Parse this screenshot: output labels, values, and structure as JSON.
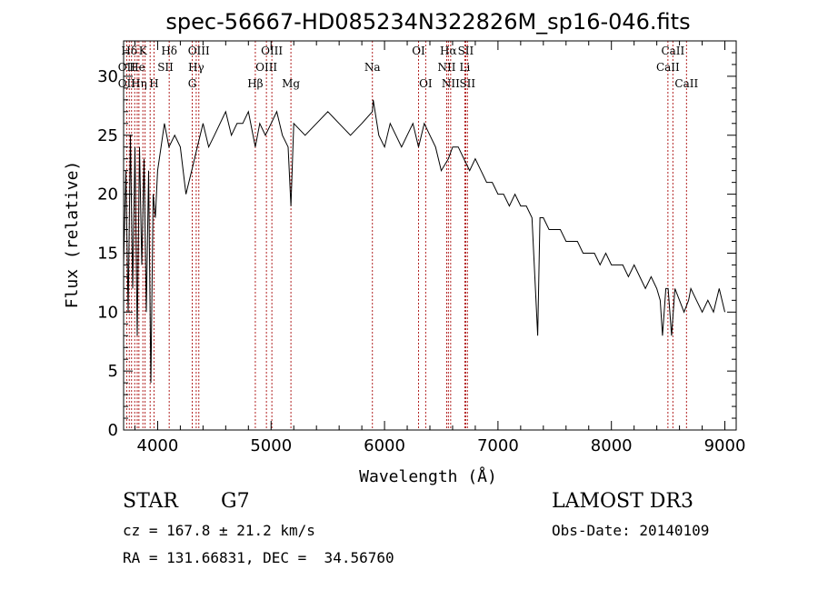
{
  "chart_data": {
    "type": "line",
    "title": "spec-56667-HD085234N322826M_sp16-046.fits",
    "xlabel": "Wavelength (Å)",
    "ylabel": "Flux (relative)",
    "xlim": [
      3700,
      9100
    ],
    "ylim": [
      0,
      33
    ],
    "xticks": [
      4000,
      5000,
      6000,
      7000,
      8000,
      9000
    ],
    "yticks": [
      0,
      5,
      10,
      15,
      20,
      25,
      30
    ],
    "line_color": "#000000",
    "marker_color": "#b22222",
    "grid": false,
    "series": [
      {
        "x": [
          3700,
          3720,
          3740,
          3760,
          3780,
          3800,
          3820,
          3840,
          3860,
          3880,
          3900,
          3920,
          3940,
          3960,
          3980,
          4000,
          4030,
          4060,
          4100,
          4150,
          4200,
          4250,
          4300,
          4350,
          4400,
          4450,
          4500,
          4550,
          4600,
          4650,
          4700,
          4750,
          4800,
          4861,
          4900,
          4950,
          5000,
          5050,
          5100,
          5150,
          5175,
          5200,
          5300,
          5400,
          5500,
          5600,
          5700,
          5800,
          5893,
          5900,
          5950,
          6000,
          6050,
          6100,
          6150,
          6200,
          6250,
          6300,
          6350,
          6400,
          6450,
          6500,
          6563,
          6600,
          6650,
          6700,
          6750,
          6800,
          6850,
          6900,
          6950,
          7000,
          7050,
          7100,
          7150,
          7200,
          7250,
          7300,
          7350,
          7370,
          7400,
          7450,
          7500,
          7550,
          7600,
          7650,
          7700,
          7750,
          7800,
          7850,
          7900,
          7950,
          8000,
          8050,
          8100,
          8150,
          8200,
          8250,
          8300,
          8350,
          8400,
          8430,
          8450,
          8480,
          8500,
          8530,
          8560,
          8600,
          8640,
          8680,
          8700,
          8750,
          8800,
          8850,
          8900,
          8950,
          9000
        ],
        "y": [
          14,
          22,
          10,
          25,
          12,
          24,
          8,
          24,
          14,
          23,
          10,
          22,
          4,
          20,
          18,
          22,
          24,
          26,
          24,
          25,
          24,
          20,
          22,
          24,
          26,
          24,
          25,
          26,
          27,
          25,
          26,
          26,
          27,
          24,
          26,
          25,
          26,
          27,
          25,
          24,
          19,
          26,
          25,
          26,
          27,
          26,
          25,
          26,
          27,
          28,
          25,
          24,
          26,
          25,
          24,
          25,
          26,
          24,
          26,
          25,
          24,
          22,
          23,
          24,
          24,
          23,
          22,
          23,
          22,
          21,
          21,
          20,
          20,
          19,
          20,
          19,
          19,
          18,
          8,
          18,
          18,
          17,
          17,
          17,
          16,
          16,
          16,
          15,
          15,
          15,
          14,
          15,
          14,
          14,
          14,
          13,
          14,
          13,
          12,
          13,
          12,
          11,
          8,
          12,
          12,
          8,
          12,
          11,
          10,
          11,
          12,
          11,
          10,
          11,
          10,
          12,
          10
        ]
      }
    ],
    "line_ids": [
      {
        "label": "Hδ",
        "wave": 3750,
        "row": 0
      },
      {
        "label": "K",
        "wave": 3870,
        "row": 0
      },
      {
        "label": "Hδ",
        "wave": 4102,
        "row": 0
      },
      {
        "label": "OIII",
        "wave": 4363,
        "row": 0
      },
      {
        "label": "OIII",
        "wave": 5007,
        "row": 0
      },
      {
        "label": "OI",
        "wave": 6300,
        "row": 0
      },
      {
        "label": "Hα",
        "wave": 6563,
        "row": 0
      },
      {
        "label": "SII",
        "wave": 6716,
        "row": 0
      },
      {
        "label": "CaII",
        "wave": 8542,
        "row": 0
      },
      {
        "label": "OII",
        "wave": 3727,
        "row": 1
      },
      {
        "label": "He",
        "wave": 3820,
        "row": 1
      },
      {
        "label": "SII",
        "wave": 4069,
        "row": 1
      },
      {
        "label": "Hγ",
        "wave": 4340,
        "row": 1
      },
      {
        "label": "OIII",
        "wave": 4959,
        "row": 1
      },
      {
        "label": "Na",
        "wave": 5893,
        "row": 1
      },
      {
        "label": "NII",
        "wave": 6548,
        "row": 1
      },
      {
        "label": "Li",
        "wave": 6708,
        "row": 1
      },
      {
        "label": "CaII",
        "wave": 8498,
        "row": 1
      },
      {
        "label": "OII",
        "wave": 3727,
        "row": 2
      },
      {
        "label": "Hη",
        "wave": 3835,
        "row": 2
      },
      {
        "label": "H",
        "wave": 3968,
        "row": 2
      },
      {
        "label": "G",
        "wave": 4305,
        "row": 2
      },
      {
        "label": "Hβ",
        "wave": 4861,
        "row": 2
      },
      {
        "label": "Mg",
        "wave": 5175,
        "row": 2
      },
      {
        "label": "OI",
        "wave": 6363,
        "row": 2
      },
      {
        "label": "NII",
        "wave": 6583,
        "row": 2
      },
      {
        "label": "SII",
        "wave": 6731,
        "row": 2
      },
      {
        "label": "CaII",
        "wave": 8662,
        "row": 2
      }
    ],
    "marker_waves": [
      3727,
      3750,
      3770,
      3798,
      3820,
      3835,
      3870,
      3889,
      3934,
      3968,
      4102,
      4305,
      4340,
      4363,
      4861,
      4959,
      5007,
      5175,
      5893,
      6300,
      6363,
      6548,
      6563,
      6583,
      6708,
      6716,
      6731,
      8498,
      8542,
      8662
    ]
  },
  "info": {
    "object_class": "STAR",
    "subclass": "G7",
    "survey": "LAMOST DR3",
    "redshift": "cz = 167.8 ± 21.2 km/s",
    "obs_date": "Obs-Date: 20140109",
    "coords": "RA = 131.66831, DEC =  34.56760"
  }
}
